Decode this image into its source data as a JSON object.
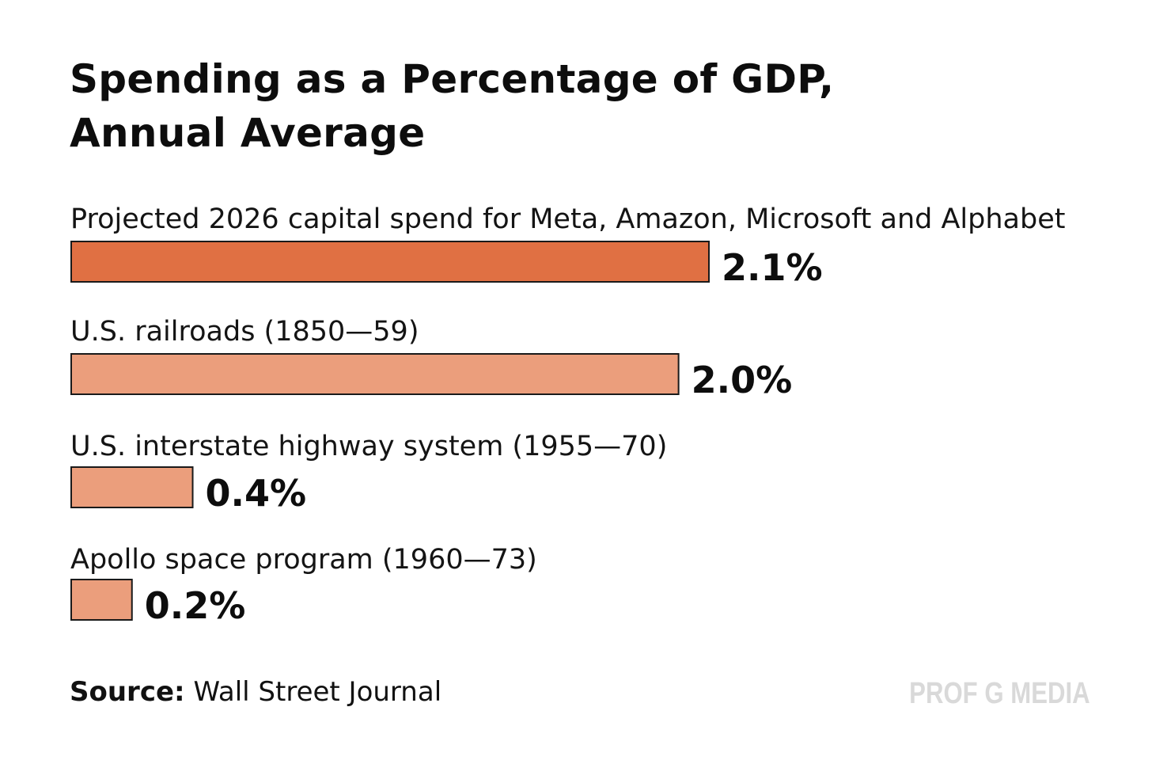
{
  "chart_data": {
    "type": "bar",
    "orientation": "horizontal",
    "title_lines": [
      "Spending as a Percentage of GDP,",
      "Annual Average"
    ],
    "categories": [
      "Projected 2026 capital spend for Meta, Amazon, Microsoft and Alphabet",
      "U.S. railroads (1850—59)",
      "U.S. interstate highway system (1955—70)",
      "Apollo space program (1960—73)"
    ],
    "values": [
      2.1,
      2.0,
      0.4,
      0.2
    ],
    "value_labels": [
      "2.1%",
      "2.0%",
      "0.4%",
      "0.2%"
    ],
    "unit": "% of GDP",
    "xlim": [
      0,
      2.1
    ],
    "grid": false,
    "legend": "none",
    "colors": [
      "#e07043",
      "#eb9e7c",
      "#eb9e7c",
      "#eb9e7c"
    ],
    "bar_outline": "#1a1a1a"
  },
  "source": {
    "label": "Source:",
    "text": "Wall Street Journal"
  },
  "brand": {
    "text": "PROF G MEDIA",
    "color": "#d9d9d9"
  }
}
